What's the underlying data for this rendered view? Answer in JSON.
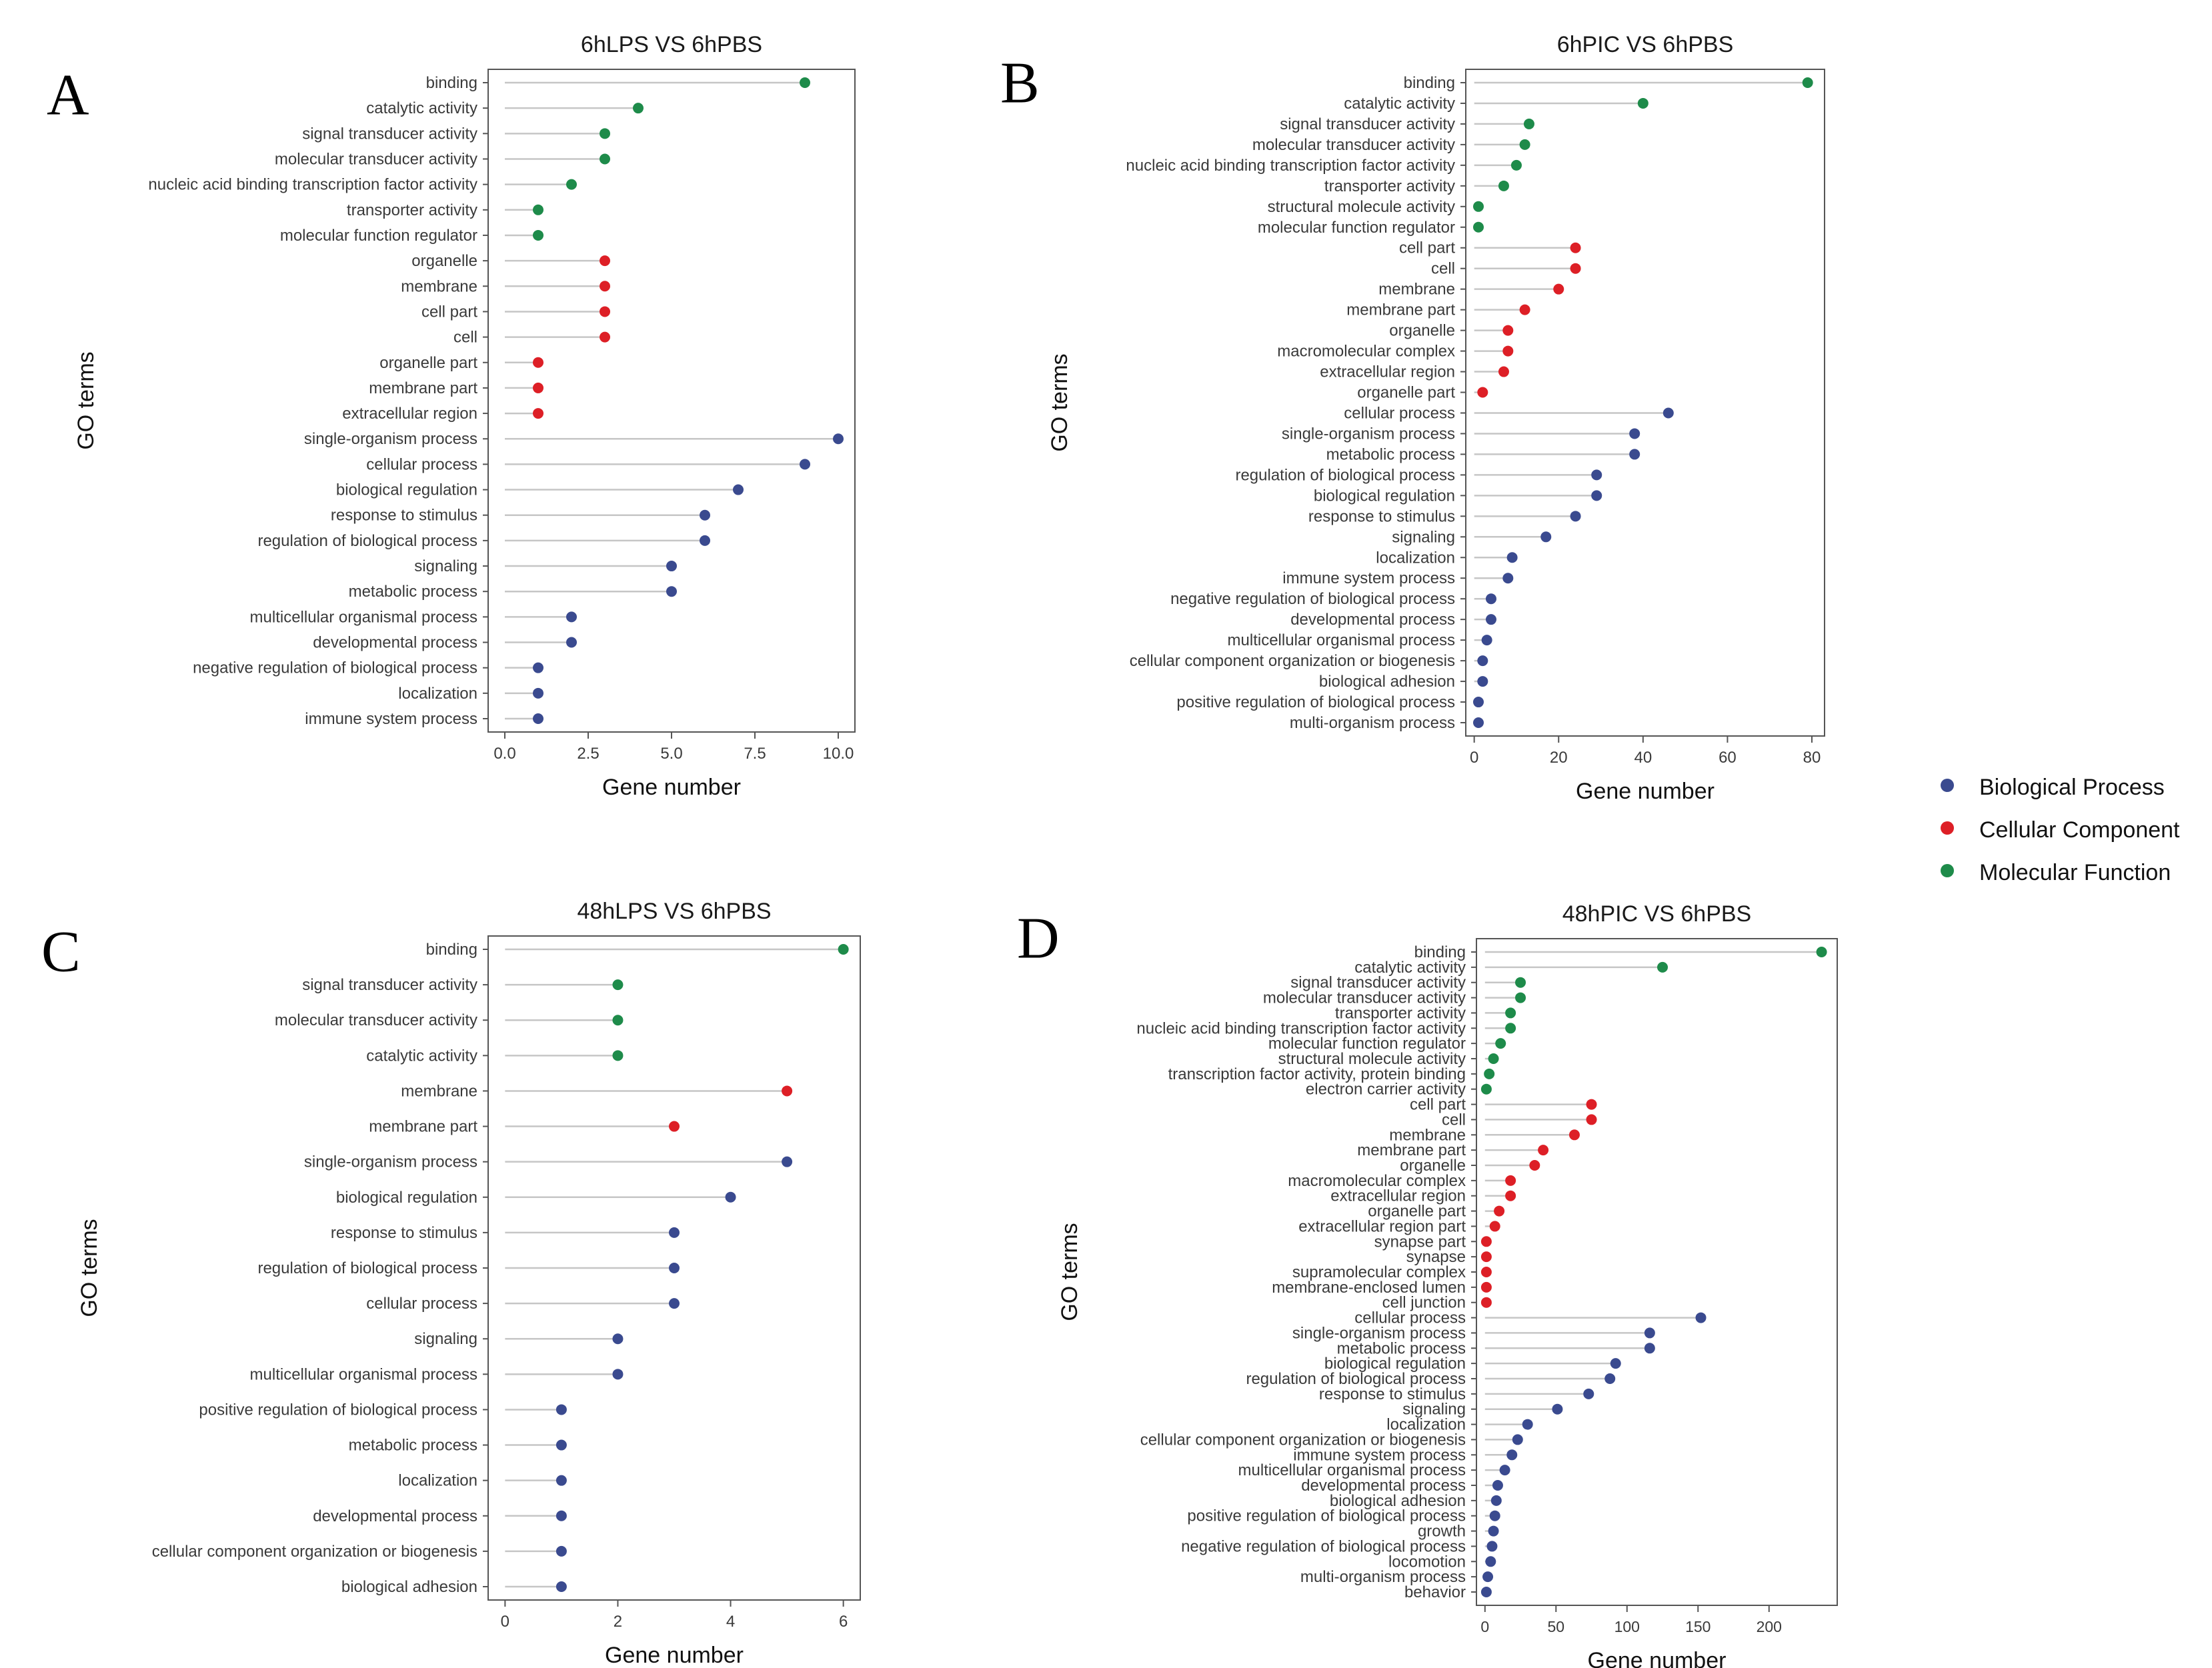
{
  "colors": {
    "Biological Process": "#3a4a8f",
    "Cellular Component": "#dd1f26",
    "Molecular Function": "#1e8b4a",
    "stem": "#c6c6c6",
    "frame": "#555555"
  },
  "legend": {
    "entries": [
      "Biological Process",
      "Cellular Component",
      "Molecular Function"
    ]
  },
  "chart_data": [
    {
      "type": "lollipop",
      "panel": "A",
      "title": "6hLPS VS 6hPBS",
      "xlabel": "Gene number",
      "ylabel": "GO terms",
      "xlim": [
        -0.5,
        10.5
      ],
      "xticks": [
        0,
        2.5,
        5,
        7.5,
        10
      ],
      "xtick_labels": [
        "0.0",
        "2.5",
        "5.0",
        "7.5",
        "10.0"
      ],
      "terms": [
        {
          "label": "binding",
          "value": 9,
          "category": "Molecular Function"
        },
        {
          "label": "catalytic activity",
          "value": 4,
          "category": "Molecular Function"
        },
        {
          "label": "signal transducer activity",
          "value": 3,
          "category": "Molecular Function"
        },
        {
          "label": "molecular transducer activity",
          "value": 3,
          "category": "Molecular Function"
        },
        {
          "label": "nucleic acid binding transcription factor activity",
          "value": 2,
          "category": "Molecular Function"
        },
        {
          "label": "transporter activity",
          "value": 1,
          "category": "Molecular Function"
        },
        {
          "label": "molecular function regulator",
          "value": 1,
          "category": "Molecular Function"
        },
        {
          "label": "organelle",
          "value": 3,
          "category": "Cellular Component"
        },
        {
          "label": "membrane",
          "value": 3,
          "category": "Cellular Component"
        },
        {
          "label": "cell part",
          "value": 3,
          "category": "Cellular Component"
        },
        {
          "label": "cell",
          "value": 3,
          "category": "Cellular Component"
        },
        {
          "label": "organelle part",
          "value": 1,
          "category": "Cellular Component"
        },
        {
          "label": "membrane part",
          "value": 1,
          "category": "Cellular Component"
        },
        {
          "label": "extracellular region",
          "value": 1,
          "category": "Cellular Component"
        },
        {
          "label": "single-organism process",
          "value": 10,
          "category": "Biological Process"
        },
        {
          "label": "cellular process",
          "value": 9,
          "category": "Biological Process"
        },
        {
          "label": "biological regulation",
          "value": 7,
          "category": "Biological Process"
        },
        {
          "label": "response to stimulus",
          "value": 6,
          "category": "Biological Process"
        },
        {
          "label": "regulation of biological process",
          "value": 6,
          "category": "Biological Process"
        },
        {
          "label": "signaling",
          "value": 5,
          "category": "Biological Process"
        },
        {
          "label": "metabolic process",
          "value": 5,
          "category": "Biological Process"
        },
        {
          "label": "multicellular organismal process",
          "value": 2,
          "category": "Biological Process"
        },
        {
          "label": "developmental process",
          "value": 2,
          "category": "Biological Process"
        },
        {
          "label": "negative regulation of biological process",
          "value": 1,
          "category": "Biological Process"
        },
        {
          "label": "localization",
          "value": 1,
          "category": "Biological Process"
        },
        {
          "label": "immune system process",
          "value": 1,
          "category": "Biological Process"
        }
      ]
    },
    {
      "type": "lollipop",
      "panel": "B",
      "title": "6hPIC VS 6hPBS",
      "xlabel": "Gene number",
      "ylabel": "GO terms",
      "xlim": [
        -2,
        83
      ],
      "xticks": [
        0,
        20,
        40,
        60,
        80
      ],
      "xtick_labels": [
        "0",
        "20",
        "40",
        "60",
        "80"
      ],
      "terms": [
        {
          "label": "binding",
          "value": 79,
          "category": "Molecular Function"
        },
        {
          "label": "catalytic activity",
          "value": 40,
          "category": "Molecular Function"
        },
        {
          "label": "signal transducer activity",
          "value": 13,
          "category": "Molecular Function"
        },
        {
          "label": "molecular transducer activity",
          "value": 12,
          "category": "Molecular Function"
        },
        {
          "label": "nucleic acid binding transcription factor activity",
          "value": 10,
          "category": "Molecular Function"
        },
        {
          "label": "transporter activity",
          "value": 7,
          "category": "Molecular Function"
        },
        {
          "label": "structural molecule activity",
          "value": 1,
          "category": "Molecular Function"
        },
        {
          "label": "molecular function regulator",
          "value": 1,
          "category": "Molecular Function"
        },
        {
          "label": "cell part",
          "value": 24,
          "category": "Cellular Component"
        },
        {
          "label": "cell",
          "value": 24,
          "category": "Cellular Component"
        },
        {
          "label": "membrane",
          "value": 20,
          "category": "Cellular Component"
        },
        {
          "label": "membrane part",
          "value": 12,
          "category": "Cellular Component"
        },
        {
          "label": "organelle",
          "value": 8,
          "category": "Cellular Component"
        },
        {
          "label": "macromolecular complex",
          "value": 8,
          "category": "Cellular Component"
        },
        {
          "label": "extracellular region",
          "value": 7,
          "category": "Cellular Component"
        },
        {
          "label": "organelle part",
          "value": 2,
          "category": "Cellular Component"
        },
        {
          "label": "cellular process",
          "value": 46,
          "category": "Biological Process"
        },
        {
          "label": "single-organism process",
          "value": 38,
          "category": "Biological Process"
        },
        {
          "label": "metabolic process",
          "value": 38,
          "category": "Biological Process"
        },
        {
          "label": "regulation of biological process",
          "value": 29,
          "category": "Biological Process"
        },
        {
          "label": "biological regulation",
          "value": 29,
          "category": "Biological Process"
        },
        {
          "label": "response to stimulus",
          "value": 24,
          "category": "Biological Process"
        },
        {
          "label": "signaling",
          "value": 17,
          "category": "Biological Process"
        },
        {
          "label": "localization",
          "value": 9,
          "category": "Biological Process"
        },
        {
          "label": "immune system process",
          "value": 8,
          "category": "Biological Process"
        },
        {
          "label": "negative regulation of biological process",
          "value": 4,
          "category": "Biological Process"
        },
        {
          "label": "developmental process",
          "value": 4,
          "category": "Biological Process"
        },
        {
          "label": "multicellular organismal process",
          "value": 3,
          "category": "Biological Process"
        },
        {
          "label": "cellular component organization or biogenesis",
          "value": 2,
          "category": "Biological Process"
        },
        {
          "label": "biological adhesion",
          "value": 2,
          "category": "Biological Process"
        },
        {
          "label": "positive regulation of biological process",
          "value": 1,
          "category": "Biological Process"
        },
        {
          "label": "multi-organism process",
          "value": 1,
          "category": "Biological Process"
        }
      ]
    },
    {
      "type": "lollipop",
      "panel": "C",
      "title": "48hLPS VS 6hPBS",
      "xlabel": "Gene number",
      "ylabel": "GO terms",
      "xlim": [
        -0.3,
        6.3
      ],
      "xticks": [
        0,
        2,
        4,
        6
      ],
      "xtick_labels": [
        "0",
        "2",
        "4",
        "6"
      ],
      "terms": [
        {
          "label": "binding",
          "value": 6,
          "category": "Molecular Function"
        },
        {
          "label": "signal transducer activity",
          "value": 2,
          "category": "Molecular Function"
        },
        {
          "label": "molecular transducer activity",
          "value": 2,
          "category": "Molecular Function"
        },
        {
          "label": "catalytic activity",
          "value": 2,
          "category": "Molecular Function"
        },
        {
          "label": "membrane",
          "value": 5,
          "category": "Cellular Component"
        },
        {
          "label": "membrane part",
          "value": 3,
          "category": "Cellular Component"
        },
        {
          "label": "single-organism process",
          "value": 5,
          "category": "Biological Process"
        },
        {
          "label": "biological regulation",
          "value": 4,
          "category": "Biological Process"
        },
        {
          "label": "response to stimulus",
          "value": 3,
          "category": "Biological Process"
        },
        {
          "label": "regulation of biological process",
          "value": 3,
          "category": "Biological Process"
        },
        {
          "label": "cellular process",
          "value": 3,
          "category": "Biological Process"
        },
        {
          "label": "signaling",
          "value": 2,
          "category": "Biological Process"
        },
        {
          "label": "multicellular organismal process",
          "value": 2,
          "category": "Biological Process"
        },
        {
          "label": "positive regulation of biological process",
          "value": 1,
          "category": "Biological Process"
        },
        {
          "label": "metabolic process",
          "value": 1,
          "category": "Biological Process"
        },
        {
          "label": "localization",
          "value": 1,
          "category": "Biological Process"
        },
        {
          "label": "developmental process",
          "value": 1,
          "category": "Biological Process"
        },
        {
          "label": "cellular component organization or biogenesis",
          "value": 1,
          "category": "Biological Process"
        },
        {
          "label": "biological adhesion",
          "value": 1,
          "category": "Biological Process"
        }
      ]
    },
    {
      "type": "lollipop",
      "panel": "D",
      "title": "48hPIC VS 6hPBS",
      "xlabel": "Gene number",
      "ylabel": "GO terms",
      "xlim": [
        -6,
        248
      ],
      "xticks": [
        0,
        50,
        100,
        150,
        200
      ],
      "xtick_labels": [
        "0",
        "50",
        "100",
        "150",
        "200"
      ],
      "terms": [
        {
          "label": "binding",
          "value": 237,
          "category": "Molecular Function"
        },
        {
          "label": "catalytic activity",
          "value": 125,
          "category": "Molecular Function"
        },
        {
          "label": "signal transducer activity",
          "value": 25,
          "category": "Molecular Function"
        },
        {
          "label": "molecular transducer activity",
          "value": 25,
          "category": "Molecular Function"
        },
        {
          "label": "transporter activity",
          "value": 18,
          "category": "Molecular Function"
        },
        {
          "label": "nucleic acid binding transcription factor activity",
          "value": 18,
          "category": "Molecular Function"
        },
        {
          "label": "molecular function regulator",
          "value": 11,
          "category": "Molecular Function"
        },
        {
          "label": "structural molecule activity",
          "value": 6,
          "category": "Molecular Function"
        },
        {
          "label": "transcription factor activity, protein binding",
          "value": 3,
          "category": "Molecular Function"
        },
        {
          "label": "electron carrier activity",
          "value": 1,
          "category": "Molecular Function"
        },
        {
          "label": "cell part",
          "value": 75,
          "category": "Cellular Component"
        },
        {
          "label": "cell",
          "value": 75,
          "category": "Cellular Component"
        },
        {
          "label": "membrane",
          "value": 63,
          "category": "Cellular Component"
        },
        {
          "label": "membrane part",
          "value": 41,
          "category": "Cellular Component"
        },
        {
          "label": "organelle",
          "value": 35,
          "category": "Cellular Component"
        },
        {
          "label": "macromolecular complex",
          "value": 18,
          "category": "Cellular Component"
        },
        {
          "label": "extracellular region",
          "value": 18,
          "category": "Cellular Component"
        },
        {
          "label": "organelle part",
          "value": 10,
          "category": "Cellular Component"
        },
        {
          "label": "extracellular region part",
          "value": 7,
          "category": "Cellular Component"
        },
        {
          "label": "synapse part",
          "value": 1,
          "category": "Cellular Component"
        },
        {
          "label": "synapse",
          "value": 1,
          "category": "Cellular Component"
        },
        {
          "label": "supramolecular complex",
          "value": 1,
          "category": "Cellular Component"
        },
        {
          "label": "membrane-enclosed lumen",
          "value": 1,
          "category": "Cellular Component"
        },
        {
          "label": "cell junction",
          "value": 1,
          "category": "Cellular Component"
        },
        {
          "label": "cellular process",
          "value": 152,
          "category": "Biological Process"
        },
        {
          "label": "single-organism process",
          "value": 116,
          "category": "Biological Process"
        },
        {
          "label": "metabolic process",
          "value": 116,
          "category": "Biological Process"
        },
        {
          "label": "biological regulation",
          "value": 92,
          "category": "Biological Process"
        },
        {
          "label": "regulation of biological process",
          "value": 88,
          "category": "Biological Process"
        },
        {
          "label": "response to stimulus",
          "value": 73,
          "category": "Biological Process"
        },
        {
          "label": "signaling",
          "value": 51,
          "category": "Biological Process"
        },
        {
          "label": "localization",
          "value": 30,
          "category": "Biological Process"
        },
        {
          "label": "cellular component organization or biogenesis",
          "value": 23,
          "category": "Biological Process"
        },
        {
          "label": "immune system process",
          "value": 19,
          "category": "Biological Process"
        },
        {
          "label": "multicellular organismal process",
          "value": 14,
          "category": "Biological Process"
        },
        {
          "label": "developmental process",
          "value": 9,
          "category": "Biological Process"
        },
        {
          "label": "biological adhesion",
          "value": 8,
          "category": "Biological Process"
        },
        {
          "label": "positive regulation of biological process",
          "value": 7,
          "category": "Biological Process"
        },
        {
          "label": "growth",
          "value": 6,
          "category": "Biological Process"
        },
        {
          "label": "negative regulation of biological process",
          "value": 5,
          "category": "Biological Process"
        },
        {
          "label": "locomotion",
          "value": 4,
          "category": "Biological Process"
        },
        {
          "label": "multi-organism process",
          "value": 2,
          "category": "Biological Process"
        },
        {
          "label": "behavior",
          "value": 1,
          "category": "Biological Process"
        }
      ]
    }
  ]
}
